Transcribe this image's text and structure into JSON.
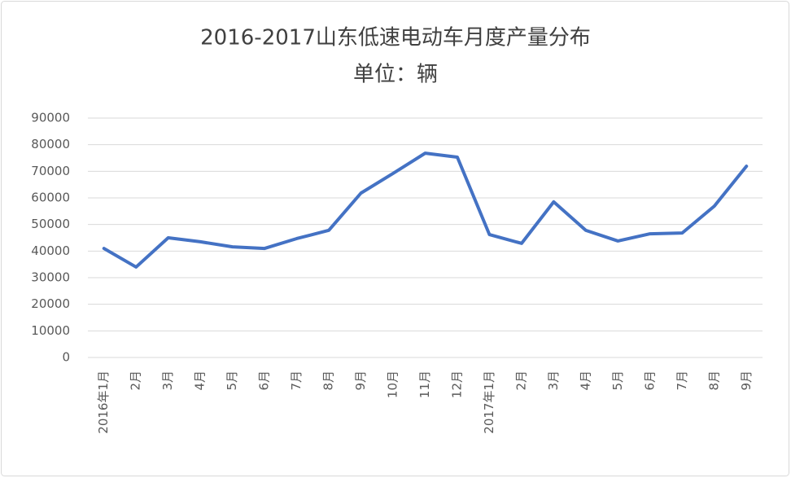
{
  "chart_data": {
    "type": "line",
    "title": "2016-2017山东低速电动车月度产量分布",
    "subtitle": "单位：辆",
    "categories": [
      "2016年1月",
      "2月",
      "3月",
      "4月",
      "5月",
      "6月",
      "7月",
      "8月",
      "9月",
      "10月",
      "11月",
      "12月",
      "2017年1月",
      "2月",
      "3月",
      "4月",
      "5月",
      "6月",
      "7月",
      "8月",
      "9月"
    ],
    "series": [
      {
        "name": "产量",
        "color": "#4472c4",
        "values": [
          41000,
          34000,
          45000,
          43500,
          41600,
          41000,
          44700,
          47800,
          61800,
          69200,
          76800,
          75300,
          46200,
          42900,
          58500,
          47800,
          43800,
          46500,
          46800,
          56900,
          71900
        ]
      }
    ],
    "ylim": [
      0,
      90000
    ],
    "yticks": [
      0,
      10000,
      20000,
      30000,
      40000,
      50000,
      60000,
      70000,
      80000,
      90000
    ],
    "grid": true
  }
}
